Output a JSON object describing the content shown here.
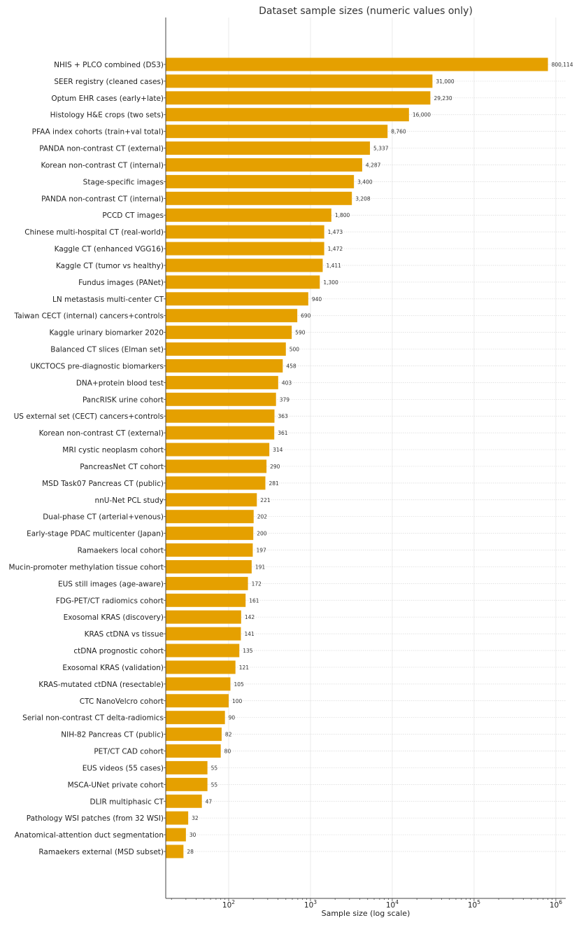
{
  "chart_data": {
    "type": "bar",
    "orientation": "horizontal",
    "title": "Dataset sample sizes (numeric values only)",
    "xlabel": "Sample size (log scale)",
    "ylabel": "",
    "xscale": "log",
    "xlim": [
      17,
      1320000
    ],
    "xticks": [
      {
        "base": "10",
        "exp": "2"
      },
      {
        "base": "10",
        "exp": "3"
      },
      {
        "base": "10",
        "exp": "4"
      },
      {
        "base": "10",
        "exp": "5"
      },
      {
        "base": "10",
        "exp": "6"
      }
    ],
    "grid": true,
    "bar_color": "#E5A000",
    "categories": [
      "NHIS + PLCO combined (DS3)",
      "SEER registry (cleaned cases)",
      "Optum EHR cases (early+late)",
      "Histology H&E crops (two sets)",
      "PFAA index cohorts (train+val total)",
      "PANDA non-contrast CT (external)",
      "Korean non-contrast CT (internal)",
      "Stage-specific images",
      "PANDA non-contrast CT (internal)",
      "PCCD CT images",
      "Chinese multi-hospital CT (real-world)",
      "Kaggle CT (enhanced VGG16)",
      "Kaggle CT (tumor vs healthy)",
      "Fundus images (PANet)",
      "LN metastasis multi-center CT",
      "Taiwan CECT (internal) cancers+controls",
      "Kaggle urinary biomarker 2020",
      "Balanced CT slices (Elman set)",
      "UKCTOCS pre-diagnostic biomarkers",
      "DNA+protein blood test",
      "PancRISK urine cohort",
      "US external set (CECT) cancers+controls",
      "Korean non-contrast CT (external)",
      "MRI cystic neoplasm cohort",
      "PancreasNet CT cohort",
      "MSD Task07 Pancreas CT (public)",
      "nnU-Net PCL study",
      "Dual-phase CT (arterial+venous)",
      "Early-stage PDAC multicenter (Japan)",
      "Ramaekers local cohort",
      "Mucin-promoter methylation tissue cohort",
      "EUS still images (age-aware)",
      "FDG-PET/CT radiomics cohort",
      "Exosomal KRAS (discovery)",
      "KRAS ctDNA vs tissue",
      "ctDNA prognostic cohort",
      "Exosomal KRAS (validation)",
      "KRAS-mutated ctDNA (resectable)",
      "CTC NanoVelcro cohort",
      "Serial non-contrast CT delta-radiomics",
      "NIH-82 Pancreas CT (public)",
      "PET/CT CAD cohort",
      "EUS videos (55 cases)",
      "MSCA-UNet private cohort",
      "DLIR multiphasic CT",
      "Pathology WSI patches (from 32 WSI)",
      "Anatomical-attention duct segmentation",
      "Ramaekers external (MSD subset)"
    ],
    "values": [
      800114,
      31000,
      29230,
      16000,
      8760,
      5337,
      4287,
      3400,
      3208,
      1800,
      1473,
      1472,
      1411,
      1300,
      940,
      690,
      590,
      500,
      458,
      403,
      379,
      363,
      361,
      314,
      290,
      281,
      221,
      202,
      200,
      197,
      191,
      172,
      161,
      142,
      141,
      135,
      121,
      105,
      100,
      90,
      82,
      80,
      55,
      55,
      47,
      32,
      30,
      28
    ]
  }
}
